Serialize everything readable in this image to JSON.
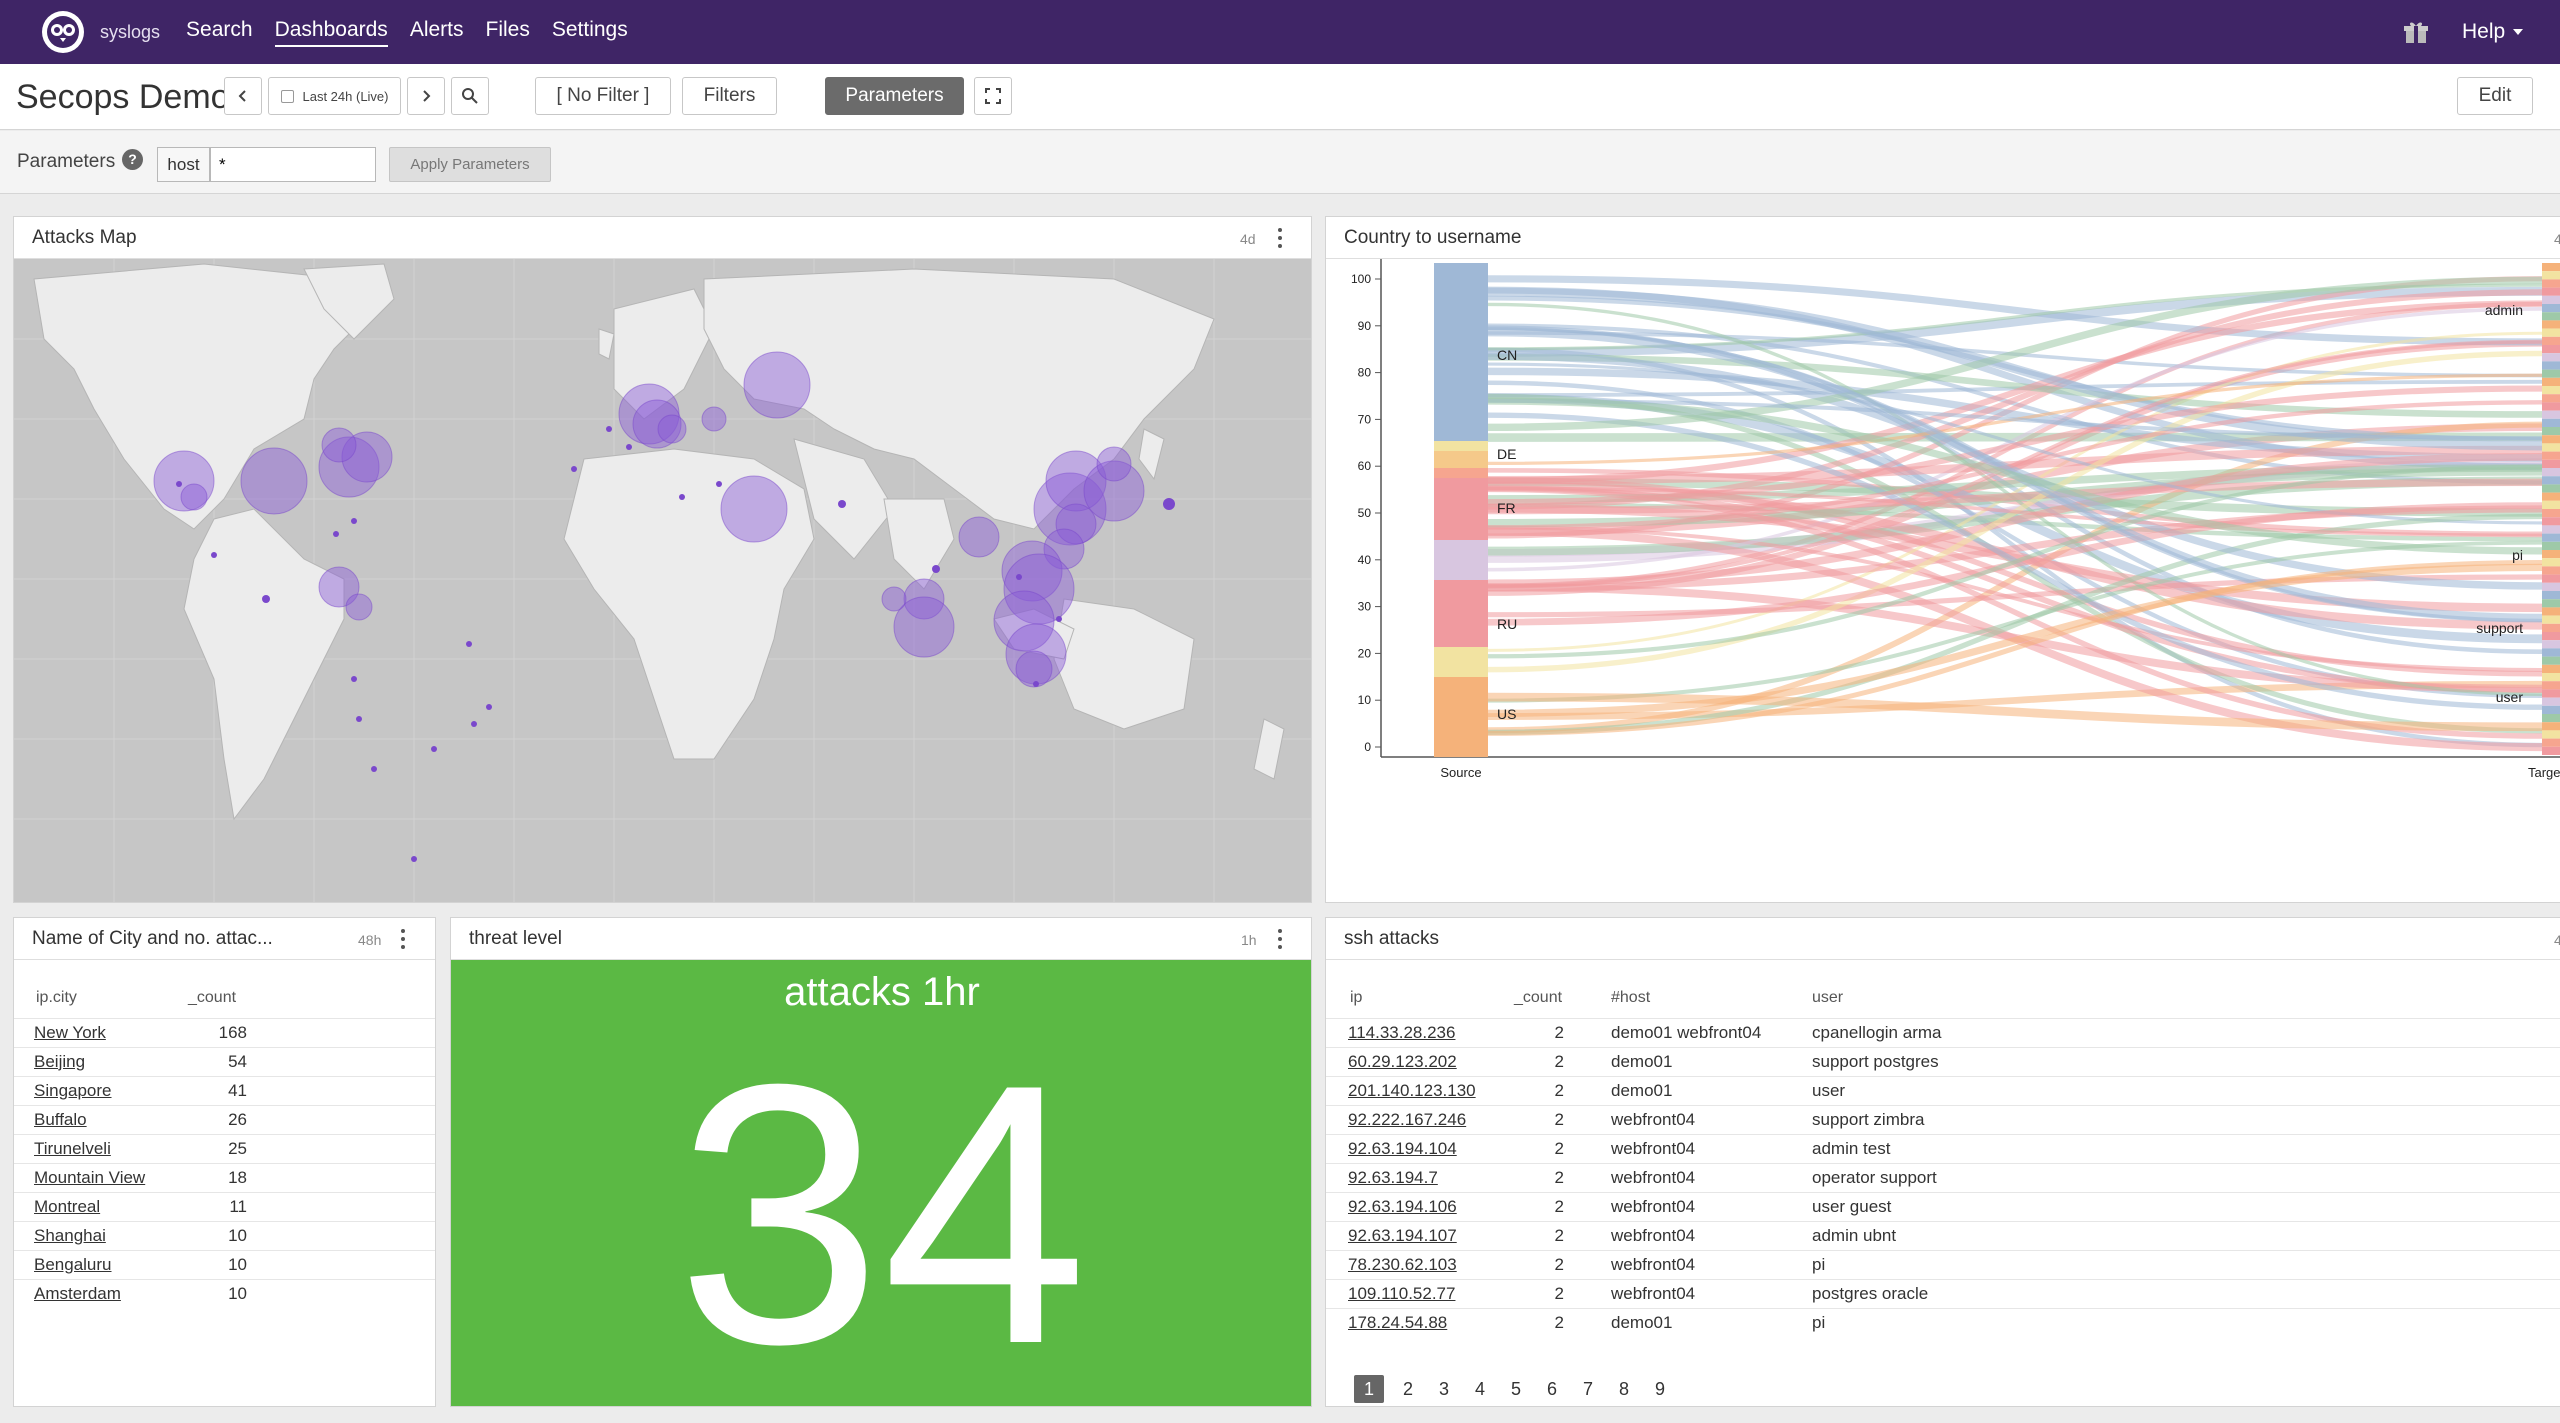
{
  "nav": {
    "brand": "syslogs",
    "links": [
      "Search",
      "Dashboards",
      "Alerts",
      "Files",
      "Settings"
    ],
    "active": "Dashboards",
    "help": "Help"
  },
  "toolbar": {
    "title": "Secops Demo",
    "time_range": "Last 24h (Live)",
    "no_filter": "[ No Filter ]",
    "filters": "Filters",
    "parameters": "Parameters",
    "edit": "Edit"
  },
  "params": {
    "label": "Parameters",
    "help": "?",
    "key": "host",
    "value": "*",
    "apply": "Apply Parameters"
  },
  "map_panel": {
    "title": "Attacks Map",
    "age": "4d"
  },
  "sankey_panel": {
    "title": "Country to username",
    "age": "4",
    "y_ticks": [
      "100",
      "90",
      "80",
      "70",
      "60",
      "50",
      "40",
      "30",
      "20",
      "10",
      "0"
    ],
    "source_label": "Source",
    "target_label": "Target",
    "sources": [
      "CN",
      "DE",
      "FR",
      "RU",
      "US"
    ],
    "targets": [
      "admin",
      "pi",
      "support",
      "user"
    ]
  },
  "city_panel": {
    "title": "Name of City and no. attac...",
    "age": "48h",
    "columns": [
      "ip.city",
      "_count"
    ],
    "rows": [
      [
        "New York",
        "168"
      ],
      [
        "Beijing",
        "54"
      ],
      [
        "Singapore",
        "41"
      ],
      [
        "Buffalo",
        "26"
      ],
      [
        "Tirunelveli",
        "25"
      ],
      [
        "Mountain View",
        "18"
      ],
      [
        "Montreal",
        "11"
      ],
      [
        "Shanghai",
        "10"
      ],
      [
        "Bengaluru",
        "10"
      ],
      [
        "Amsterdam",
        "10"
      ]
    ]
  },
  "threat_panel": {
    "title": "threat level",
    "age": "1h",
    "label": "attacks 1hr",
    "value": "34",
    "color": "#5bb944"
  },
  "ssh_panel": {
    "title": "ssh attacks",
    "age": "4",
    "columns": [
      "ip",
      "_count",
      "#host",
      "user"
    ],
    "rows": [
      [
        "114.33.28.236",
        "2",
        "demo01 webfront04",
        "cpanellogin arma"
      ],
      [
        "60.29.123.202",
        "2",
        "demo01",
        "support postgres"
      ],
      [
        "201.140.123.130",
        "2",
        "demo01",
        "user"
      ],
      [
        "92.222.167.246",
        "2",
        "webfront04",
        "support zimbra"
      ],
      [
        "92.63.194.104",
        "2",
        "webfront04",
        "admin test"
      ],
      [
        "92.63.194.7",
        "2",
        "webfront04",
        "operator support"
      ],
      [
        "92.63.194.106",
        "2",
        "webfront04",
        "user guest"
      ],
      [
        "92.63.194.107",
        "2",
        "webfront04",
        "admin ubnt"
      ],
      [
        "78.230.62.103",
        "2",
        "webfront04",
        "pi"
      ],
      [
        "109.110.52.77",
        "2",
        "webfront04",
        "postgres oracle"
      ],
      [
        "178.24.54.88",
        "2",
        "demo01",
        "pi"
      ]
    ],
    "pages": [
      "1",
      "2",
      "3",
      "4",
      "5",
      "6",
      "7",
      "8",
      "9"
    ],
    "current_page": "1"
  },
  "colors": {
    "nav_bg": "#3f2566",
    "accent_purple": "#8a5ad6",
    "threat_green": "#5bb944"
  }
}
